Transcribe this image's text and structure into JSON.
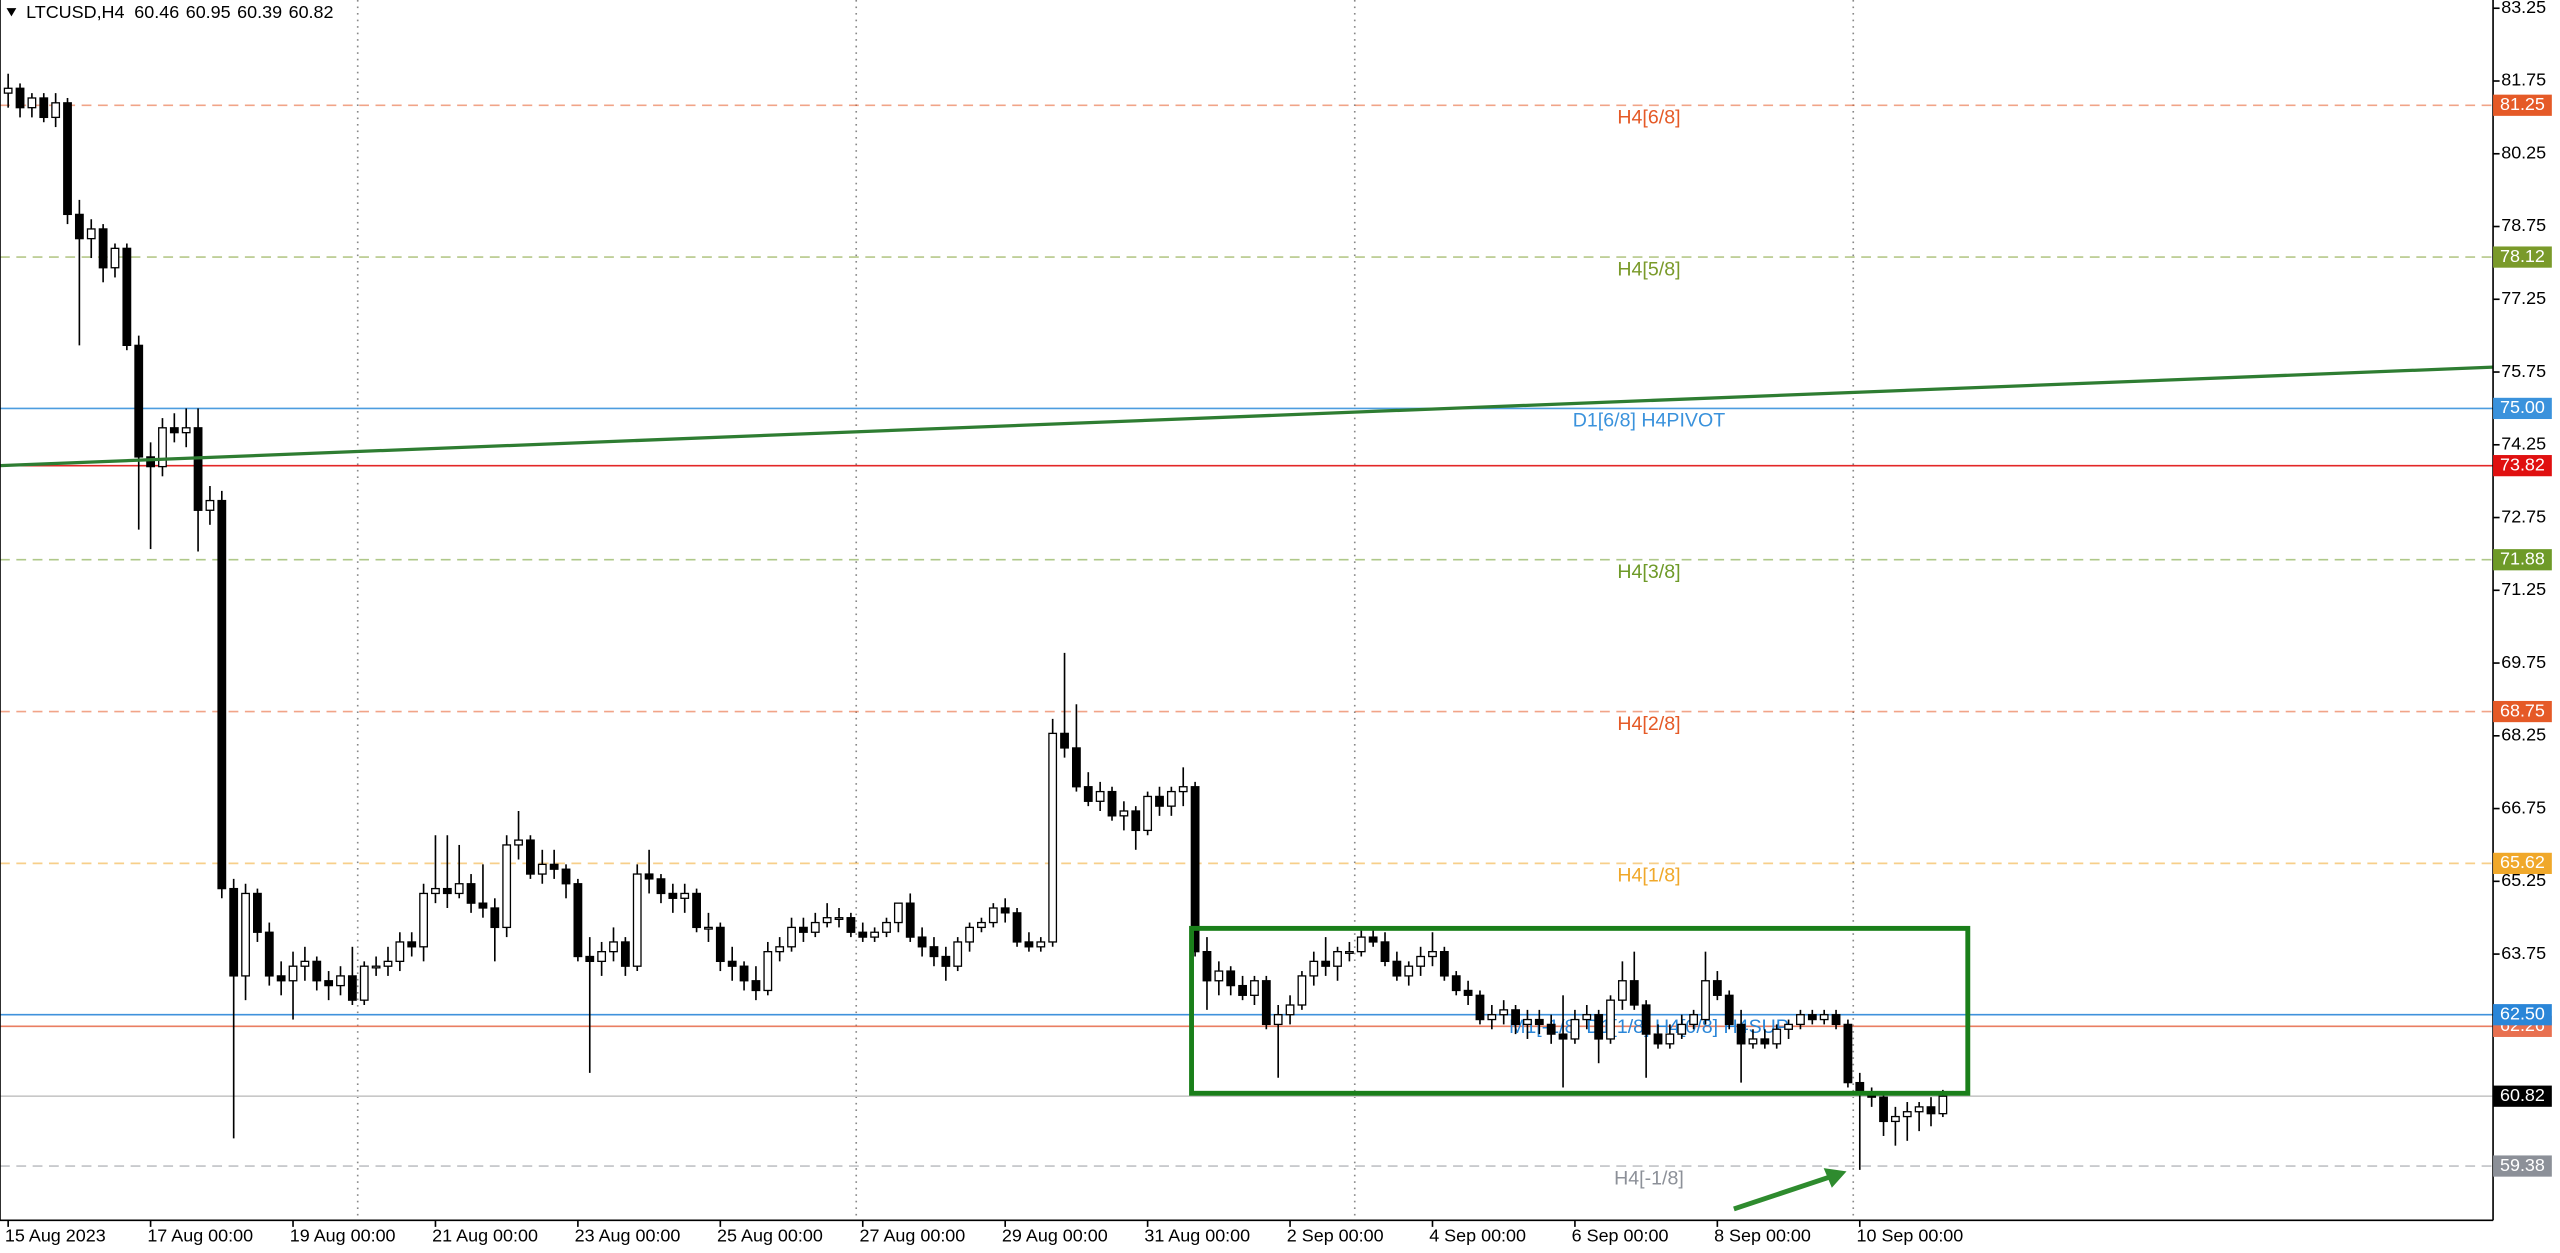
{
  "chart_data": {
    "type": "candlestick",
    "symbol": "LTCUSD,H4",
    "ylim": [
      58.26,
      83.42
    ],
    "yticks": [
      83.25,
      81.75,
      80.25,
      78.75,
      77.25,
      75.75,
      74.25,
      72.75,
      71.25,
      69.75,
      68.25,
      66.75,
      65.25,
      63.75
    ],
    "grid": true,
    "up_color": "#ffffff",
    "down_color": "#000000",
    "categories": [
      "15 Aug 2023",
      null,
      null,
      null,
      null,
      null,
      null,
      null,
      null,
      null,
      null,
      null,
      "17 Aug 00:00",
      null,
      null,
      null,
      null,
      null,
      null,
      null,
      null,
      null,
      null,
      null,
      "19 Aug 00:00",
      null,
      null,
      null,
      null,
      null,
      null,
      null,
      null,
      null,
      null,
      null,
      "21 Aug 00:00",
      null,
      null,
      null,
      null,
      null,
      null,
      null,
      null,
      null,
      null,
      null,
      "23 Aug 00:00",
      null,
      null,
      null,
      null,
      null,
      null,
      null,
      null,
      null,
      null,
      null,
      "25 Aug 00:00",
      null,
      null,
      null,
      null,
      null,
      null,
      null,
      null,
      null,
      null,
      null,
      "27 Aug 00:00",
      null,
      null,
      null,
      null,
      null,
      null,
      null,
      null,
      null,
      null,
      null,
      "29 Aug 00:00",
      null,
      null,
      null,
      null,
      null,
      null,
      null,
      null,
      null,
      null,
      null,
      "31 Aug 00:00",
      null,
      null,
      null,
      null,
      null,
      null,
      null,
      null,
      null,
      null,
      null,
      "2 Sep 00:00",
      null,
      null,
      null,
      null,
      null,
      null,
      null,
      null,
      null,
      null,
      null,
      "4 Sep 00:00",
      null,
      null,
      null,
      null,
      null,
      null,
      null,
      null,
      null,
      null,
      null,
      "6 Sep 00:00",
      null,
      null,
      null,
      null,
      null,
      null,
      null,
      null,
      null,
      null,
      null,
      "8 Sep 00:00",
      null,
      null,
      null,
      null,
      null,
      null,
      null,
      null,
      null,
      null,
      null,
      "10 Sep 00:00",
      null,
      null,
      null,
      null,
      null,
      null,
      null
    ],
    "ohlc": [
      [
        81.5,
        81.9,
        81.2,
        81.6
      ],
      [
        81.6,
        81.7,
        81.0,
        81.2
      ],
      [
        81.2,
        81.5,
        81.0,
        81.4
      ],
      [
        81.4,
        81.5,
        80.9,
        81.0
      ],
      [
        81.0,
        81.5,
        80.8,
        81.3
      ],
      [
        81.3,
        81.4,
        78.8,
        79.0
      ],
      [
        79.0,
        79.3,
        76.3,
        78.5
      ],
      [
        78.5,
        78.9,
        78.1,
        78.7
      ],
      [
        78.7,
        78.8,
        77.6,
        77.9
      ],
      [
        77.9,
        78.4,
        77.7,
        78.3
      ],
      [
        78.3,
        78.4,
        76.2,
        76.3
      ],
      [
        76.3,
        76.5,
        72.5,
        74.0
      ],
      [
        74.0,
        74.3,
        72.1,
        73.8
      ],
      [
        73.8,
        74.8,
        73.6,
        74.6
      ],
      [
        74.6,
        74.9,
        74.3,
        74.5
      ],
      [
        74.5,
        75.0,
        74.2,
        74.6
      ],
      [
        74.6,
        75.0,
        72.05,
        72.9
      ],
      [
        72.9,
        73.4,
        72.6,
        73.1
      ],
      [
        73.1,
        73.3,
        64.9,
        65.1
      ],
      [
        65.1,
        65.3,
        59.95,
        63.3
      ],
      [
        63.3,
        65.2,
        62.8,
        65.0
      ],
      [
        65.0,
        65.1,
        64.0,
        64.2
      ],
      [
        64.2,
        64.4,
        63.1,
        63.3
      ],
      [
        63.3,
        63.6,
        62.9,
        63.2
      ],
      [
        63.2,
        63.8,
        62.4,
        63.5
      ],
      [
        63.5,
        63.9,
        63.2,
        63.6
      ],
      [
        63.6,
        63.7,
        63.0,
        63.2
      ],
      [
        63.2,
        63.4,
        62.8,
        63.1
      ],
      [
        63.1,
        63.5,
        62.9,
        63.3
      ],
      [
        63.3,
        63.9,
        62.7,
        62.8
      ],
      [
        62.8,
        63.6,
        62.7,
        63.5
      ],
      [
        63.5,
        63.7,
        63.3,
        63.5
      ],
      [
        63.5,
        63.9,
        63.3,
        63.6
      ],
      [
        63.6,
        64.2,
        63.4,
        64.0
      ],
      [
        64.0,
        64.2,
        63.7,
        63.9
      ],
      [
        63.9,
        65.2,
        63.6,
        65.0
      ],
      [
        65.0,
        66.2,
        64.8,
        65.1
      ],
      [
        65.1,
        66.2,
        64.7,
        65.0
      ],
      [
        65.0,
        66.0,
        64.9,
        65.2
      ],
      [
        65.2,
        65.4,
        64.6,
        64.8
      ],
      [
        64.8,
        65.6,
        64.5,
        64.7
      ],
      [
        64.7,
        64.9,
        63.6,
        64.3
      ],
      [
        64.3,
        66.2,
        64.1,
        66.0
      ],
      [
        66.0,
        66.7,
        65.7,
        66.1
      ],
      [
        66.1,
        66.2,
        65.3,
        65.4
      ],
      [
        65.4,
        65.9,
        65.2,
        65.6
      ],
      [
        65.6,
        65.9,
        65.3,
        65.5
      ],
      [
        65.5,
        65.6,
        64.9,
        65.2
      ],
      [
        65.2,
        65.3,
        63.6,
        63.7
      ],
      [
        63.7,
        64.1,
        61.3,
        63.6
      ],
      [
        63.6,
        64.0,
        63.3,
        63.8
      ],
      [
        63.8,
        64.3,
        63.6,
        64.0
      ],
      [
        64.0,
        64.1,
        63.3,
        63.5
      ],
      [
        63.5,
        65.6,
        63.4,
        65.4
      ],
      [
        65.4,
        65.9,
        65.0,
        65.3
      ],
      [
        65.3,
        65.4,
        64.8,
        65.0
      ],
      [
        65.0,
        65.2,
        64.6,
        64.9
      ],
      [
        64.9,
        65.2,
        64.6,
        65.0
      ],
      [
        65.0,
        65.1,
        64.2,
        64.3
      ],
      [
        64.3,
        64.6,
        64.0,
        64.3
      ],
      [
        64.3,
        64.4,
        63.4,
        63.6
      ],
      [
        63.6,
        63.9,
        63.2,
        63.5
      ],
      [
        63.5,
        63.6,
        63.0,
        63.2
      ],
      [
        63.2,
        63.5,
        62.8,
        63.0
      ],
      [
        63.0,
        64.0,
        62.9,
        63.8
      ],
      [
        63.8,
        64.1,
        63.6,
        63.9
      ],
      [
        63.9,
        64.5,
        63.8,
        64.3
      ],
      [
        64.3,
        64.5,
        64.0,
        64.2
      ],
      [
        64.2,
        64.6,
        64.1,
        64.4
      ],
      [
        64.4,
        64.8,
        64.3,
        64.5
      ],
      [
        64.5,
        64.7,
        64.3,
        64.5
      ],
      [
        64.5,
        64.6,
        64.1,
        64.2
      ],
      [
        64.2,
        64.4,
        64.0,
        64.1
      ],
      [
        64.1,
        64.3,
        64.0,
        64.2
      ],
      [
        64.2,
        64.5,
        64.1,
        64.4
      ],
      [
        64.4,
        64.8,
        64.2,
        64.8
      ],
      [
        64.8,
        65.0,
        64.0,
        64.1
      ],
      [
        64.1,
        64.3,
        63.7,
        63.9
      ],
      [
        63.9,
        64.1,
        63.5,
        63.7
      ],
      [
        63.7,
        63.9,
        63.2,
        63.5
      ],
      [
        63.5,
        64.1,
        63.4,
        64.0
      ],
      [
        64.0,
        64.4,
        63.8,
        64.3
      ],
      [
        64.3,
        64.5,
        64.2,
        64.4
      ],
      [
        64.4,
        64.8,
        64.3,
        64.7
      ],
      [
        64.7,
        64.9,
        64.4,
        64.6
      ],
      [
        64.6,
        64.7,
        63.9,
        64.0
      ],
      [
        64.0,
        64.2,
        63.8,
        63.9
      ],
      [
        63.9,
        64.1,
        63.8,
        64.0
      ],
      [
        64.0,
        68.6,
        63.9,
        68.3
      ],
      [
        68.3,
        69.96,
        67.8,
        68.0
      ],
      [
        68.0,
        68.9,
        67.1,
        67.2
      ],
      [
        67.2,
        67.5,
        66.8,
        66.9
      ],
      [
        66.9,
        67.3,
        66.7,
        67.1
      ],
      [
        67.1,
        67.2,
        66.5,
        66.6
      ],
      [
        66.6,
        66.9,
        66.3,
        66.7
      ],
      [
        66.7,
        66.8,
        65.9,
        66.3
      ],
      [
        66.3,
        67.1,
        66.2,
        67.0
      ],
      [
        67.0,
        67.2,
        66.6,
        66.8
      ],
      [
        66.8,
        67.2,
        66.6,
        67.1
      ],
      [
        67.1,
        67.6,
        66.8,
        67.2
      ],
      [
        67.2,
        67.3,
        63.7,
        63.8
      ],
      [
        63.8,
        64.1,
        62.6,
        63.2
      ],
      [
        63.2,
        63.6,
        62.9,
        63.4
      ],
      [
        63.4,
        63.5,
        62.9,
        63.1
      ],
      [
        63.1,
        63.3,
        62.8,
        62.9
      ],
      [
        62.9,
        63.3,
        62.7,
        63.2
      ],
      [
        63.2,
        63.3,
        62.2,
        62.3
      ],
      [
        62.3,
        62.7,
        61.2,
        62.5
      ],
      [
        62.5,
        62.9,
        62.3,
        62.7
      ],
      [
        62.7,
        63.4,
        62.6,
        63.3
      ],
      [
        63.3,
        63.8,
        63.1,
        63.6
      ],
      [
        63.6,
        64.1,
        63.3,
        63.5
      ],
      [
        63.5,
        63.9,
        63.2,
        63.8
      ],
      [
        63.8,
        64.0,
        63.6,
        63.8
      ],
      [
        63.8,
        64.3,
        63.7,
        64.1
      ],
      [
        64.1,
        64.3,
        63.9,
        64.0
      ],
      [
        64.0,
        64.2,
        63.5,
        63.6
      ],
      [
        63.6,
        63.8,
        63.2,
        63.3
      ],
      [
        63.3,
        63.6,
        63.1,
        63.5
      ],
      [
        63.5,
        63.9,
        63.3,
        63.7
      ],
      [
        63.7,
        64.2,
        63.5,
        63.8
      ],
      [
        63.8,
        63.9,
        63.2,
        63.3
      ],
      [
        63.3,
        63.4,
        62.9,
        63.0
      ],
      [
        63.0,
        63.2,
        62.7,
        62.9
      ],
      [
        62.9,
        63.0,
        62.3,
        62.4
      ],
      [
        62.4,
        62.7,
        62.2,
        62.5
      ],
      [
        62.5,
        62.8,
        62.3,
        62.6
      ],
      [
        62.6,
        62.7,
        62.1,
        62.3
      ],
      [
        62.3,
        62.6,
        62.0,
        62.4
      ],
      [
        62.4,
        62.6,
        62.1,
        62.3
      ],
      [
        62.3,
        62.5,
        61.9,
        62.1
      ],
      [
        62.1,
        62.9,
        61.0,
        62.0
      ],
      [
        62.0,
        62.6,
        61.9,
        62.4
      ],
      [
        62.4,
        62.7,
        62.2,
        62.5
      ],
      [
        62.5,
        62.6,
        61.5,
        62.0
      ],
      [
        62.0,
        62.9,
        61.9,
        62.8
      ],
      [
        62.8,
        63.6,
        62.6,
        63.2
      ],
      [
        63.2,
        63.8,
        62.6,
        62.7
      ],
      [
        62.7,
        62.8,
        61.2,
        62.1
      ],
      [
        62.1,
        62.3,
        61.8,
        61.9
      ],
      [
        61.9,
        62.3,
        61.8,
        62.1
      ],
      [
        62.1,
        62.5,
        62.0,
        62.3
      ],
      [
        62.3,
        62.6,
        62.2,
        62.5
      ],
      [
        62.4,
        63.8,
        62.3,
        63.2
      ],
      [
        63.2,
        63.4,
        62.8,
        62.9
      ],
      [
        62.9,
        63.0,
        62.2,
        62.3
      ],
      [
        62.3,
        62.6,
        61.1,
        61.9
      ],
      [
        61.9,
        62.2,
        61.8,
        62.0
      ],
      [
        62.0,
        62.2,
        61.8,
        61.9
      ],
      [
        61.9,
        62.3,
        61.8,
        62.2
      ],
      [
        62.2,
        62.4,
        62.0,
        62.3
      ],
      [
        62.3,
        62.6,
        62.2,
        62.5
      ],
      [
        62.5,
        62.6,
        62.3,
        62.4
      ],
      [
        62.4,
        62.6,
        62.3,
        62.5
      ],
      [
        62.5,
        62.6,
        62.2,
        62.3
      ],
      [
        62.3,
        62.4,
        61.0,
        61.1
      ],
      [
        61.1,
        61.3,
        59.3,
        60.9
      ],
      [
        60.9,
        61.0,
        60.6,
        60.8
      ],
      [
        60.8,
        60.9,
        60.0,
        60.3
      ],
      [
        60.3,
        60.6,
        59.8,
        60.4
      ],
      [
        60.4,
        60.7,
        59.9,
        60.5
      ],
      [
        60.5,
        60.7,
        60.1,
        60.6
      ],
      [
        60.6,
        60.8,
        60.2,
        60.46
      ],
      [
        60.46,
        60.95,
        60.39,
        60.82
      ]
    ],
    "levels": [
      {
        "label": "H4[6/8]",
        "value": 81.25,
        "color": "#e55a27",
        "dashed": true
      },
      {
        "label": "H4[5/8]",
        "value": 78.12,
        "color": "#7a9a2a",
        "dashed": true
      },
      {
        "label": "D1[6/8] H4PIVOT",
        "value": 75,
        "value_label": "75.00",
        "color": "#3a92dc",
        "dashed": false
      },
      {
        "value": 73.82,
        "color": "#e01010",
        "dashed": false
      },
      {
        "label": "H4[3/8]",
        "value": 71.88,
        "color": "#6e9a28",
        "dashed": true
      },
      {
        "label": "H4[2/8]",
        "value": 68.75,
        "color": "#e55a27",
        "dashed": true
      },
      {
        "label": "H4[1/8]",
        "value": 65.62,
        "color": "#f0a82a",
        "dashed": true
      },
      {
        "value": 62.26,
        "color": "#e87050",
        "dashed": false
      },
      {
        "label": "M1[-1/8] D1[1/8] H4[0/8] H4SUP",
        "value": 62.5,
        "value_label": "62.50",
        "color": "#2a86d8",
        "dashed": false
      },
      {
        "label": "H4[-1/8]",
        "value": 59.38,
        "color": "#8c9098",
        "dashed": true
      }
    ],
    "trendline": {
      "color": "#2e7d32",
      "y": [
        73.82,
        75.85
      ]
    },
    "box": {
      "color": "#1a7f1a",
      "x": [
        99.7,
        165.1
      ],
      "ylim": [
        60.88,
        64.28
      ]
    }
  }
}
